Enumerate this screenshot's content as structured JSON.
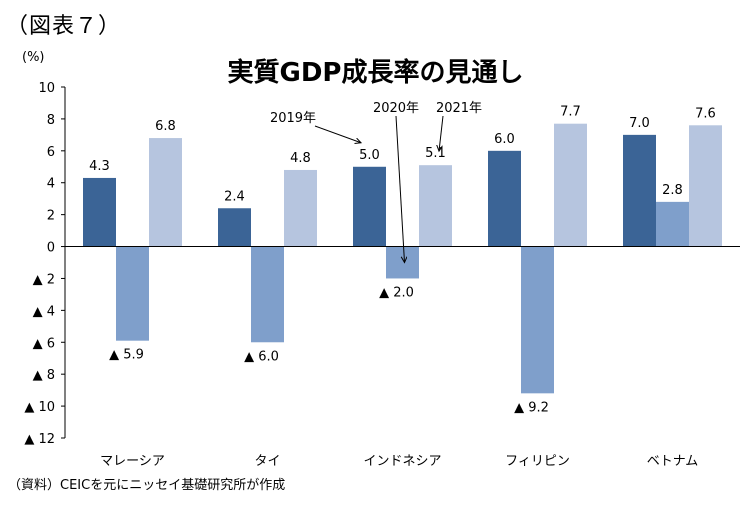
{
  "figure_label": "（図表７）",
  "source_note": "（資料）CEICを元にニッセイ基礎研究所が作成",
  "colors": {
    "y2019": "#3b6496",
    "y2020": "#7f9fcb",
    "y2021": "#b6c5df",
    "axis": "#000000"
  },
  "chart_data": {
    "type": "bar",
    "title": "実質GDP成長率の見通し",
    "ylabel": "(%)",
    "xlabel": "",
    "ylim": [
      -12,
      10
    ],
    "yticks": [
      10,
      8,
      6,
      4,
      2,
      0,
      -2,
      -4,
      -6,
      -8,
      -10,
      -12
    ],
    "ytick_labels": [
      "10",
      "8",
      "6",
      "4",
      "2",
      "0",
      "▲ 2",
      "▲ 4",
      "▲ 6",
      "▲ 8",
      "▲ 10",
      "▲ 12"
    ],
    "grid": false,
    "categories": [
      "マレーシア",
      "タイ",
      "インドネシア",
      "フィリピン",
      "ベトナム"
    ],
    "series": [
      {
        "name": "2019年",
        "values": [
          4.3,
          2.4,
          5.0,
          6.0,
          7.0
        ],
        "labels": [
          "4.3",
          "2.4",
          "5.0",
          "6.0",
          "7.0"
        ]
      },
      {
        "name": "2020年",
        "values": [
          -5.9,
          -6.0,
          -2.0,
          -9.2,
          2.8
        ],
        "labels": [
          "▲ 5.9",
          "▲ 6.0",
          "▲ 2.0",
          "▲ 9.2",
          "2.8"
        ]
      },
      {
        "name": "2021年",
        "values": [
          6.8,
          4.8,
          5.1,
          7.7,
          7.6
        ],
        "labels": [
          "6.8",
          "4.8",
          "5.1",
          "7.7",
          "7.6"
        ]
      }
    ],
    "legend": "callouts with arrows on インドネシア group"
  }
}
